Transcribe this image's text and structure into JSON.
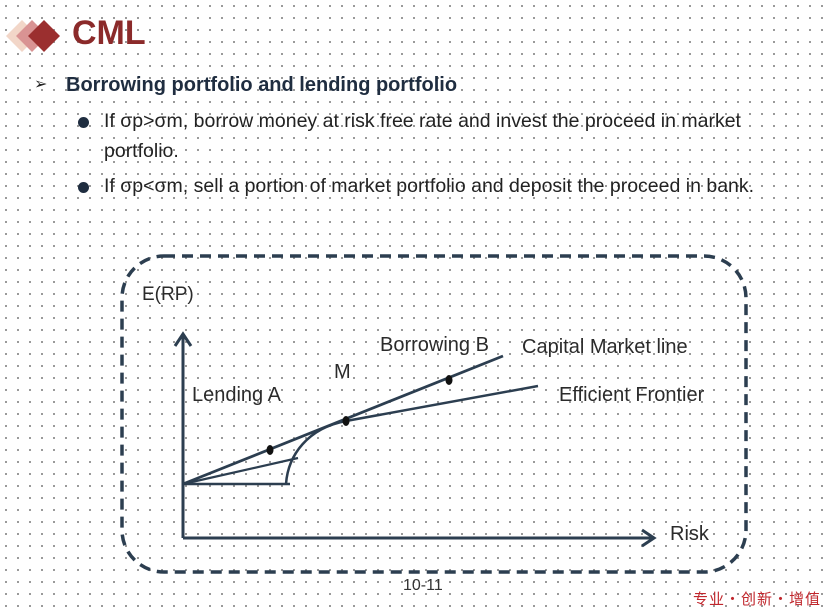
{
  "slide": {
    "title": "CML",
    "heading": "Borrowing portfolio and lending portfolio",
    "bullets": [
      {
        "line1": "If σp>σm, borrow money at risk free rate and invest the proceed in market",
        "line2": "portfolio."
      },
      {
        "line1": "If σp<σm, sell a portion of market portfolio and deposit the proceed in bank."
      }
    ],
    "page_number": "10-11",
    "footer_brand": "专业・创新・增值"
  },
  "diagram": {
    "y_axis_label": "E(RP)",
    "x_axis_label": "Risk",
    "label_lending": "Lending  A",
    "label_m": "M",
    "label_borrowing": "Borrowing  B",
    "label_cml": "Capital Market line",
    "label_frontier": "Efficient Frontier"
  },
  "colors": {
    "title": "#8b2a2a",
    "lines": "#2c3e50",
    "footer": "#c0262c"
  }
}
